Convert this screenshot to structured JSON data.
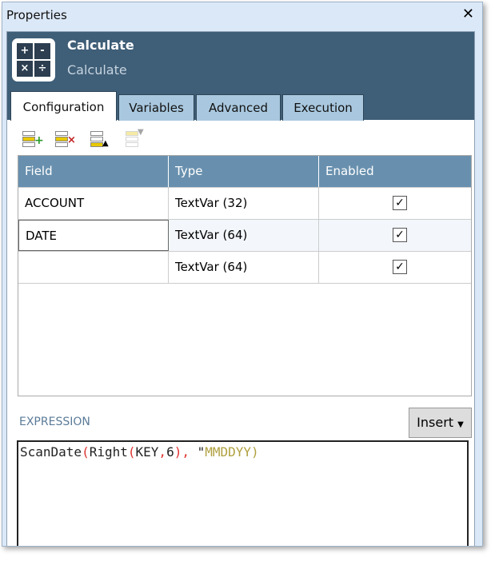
{
  "window": {
    "title": "Properties",
    "close_icon": "close-icon"
  },
  "header": {
    "title": "Calculate",
    "subtitle": "Calculate",
    "icon_symbols": [
      "+",
      "-",
      "×",
      "÷"
    ],
    "background": "#3f5e77"
  },
  "tabs": [
    {
      "label": "Configuration",
      "active": true
    },
    {
      "label": "Variables"
    },
    {
      "label": "Advanced"
    },
    {
      "label": "Execution"
    }
  ],
  "toolbar": [
    "add-field-icon",
    "delete-field-icon",
    "move-up-icon",
    "move-down-icon"
  ],
  "grid": {
    "columns": [
      "Field",
      "Type",
      "Enabled"
    ],
    "rows": [
      {
        "field": "ACCOUNT",
        "type": "TextVar (32)",
        "enabled": "✓"
      },
      {
        "field": "DATE",
        "type": "TextVar (64)",
        "enabled": "✓"
      },
      {
        "field": "",
        "type": "TextVar (64)",
        "enabled": "✓"
      }
    ]
  },
  "expression": {
    "label": "EXPRESSION",
    "insert_label": "Insert",
    "tokens": [
      {
        "t": "ScanDate",
        "c": "#222"
      },
      {
        "t": "(",
        "c": "#e03030"
      },
      {
        "t": "Right",
        "c": "#222"
      },
      {
        "t": "(",
        "c": "#e03030"
      },
      {
        "t": "KEY",
        "c": "#222"
      },
      {
        "t": ",",
        "c": "#e03030"
      },
      {
        "t": "6",
        "c": "#222"
      },
      {
        "t": ")",
        "c": "#e03030"
      },
      {
        "t": ",",
        "c": "#e03030"
      },
      {
        "t": " \"",
        "c": "#222"
      },
      {
        "t": "MMDDYY)",
        "c": "#b0a040"
      }
    ]
  }
}
